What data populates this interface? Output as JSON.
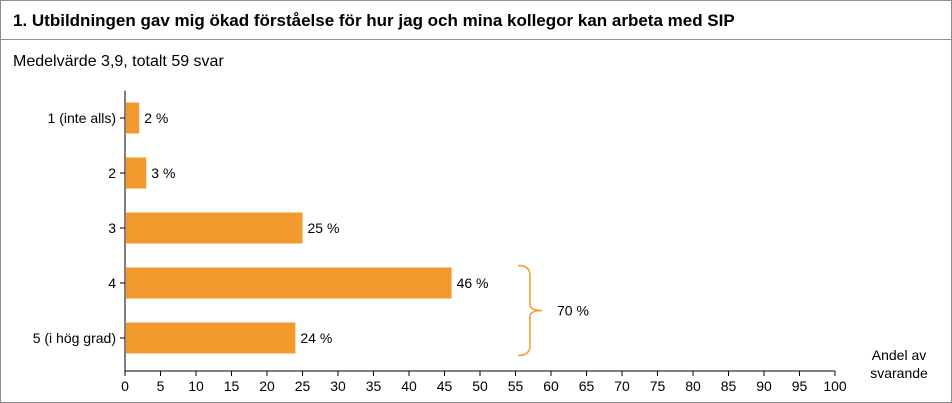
{
  "header": {
    "title": "1. Utbildningen gav mig ökad förståelse för hur jag och mina kollegor kan arbeta med SIP",
    "subtitle": "Medelvärde 3,9, totalt 59 svar"
  },
  "chart_data": {
    "type": "bar",
    "orientation": "horizontal",
    "categories": [
      "1 (inte alls)",
      "2",
      "3",
      "4",
      "5 (i hög grad)"
    ],
    "values": [
      2,
      3,
      25,
      46,
      24
    ],
    "value_labels": [
      "2 %",
      "3 %",
      "25 %",
      "46 %",
      "24 %"
    ],
    "xlim": [
      0,
      100
    ],
    "xticks": [
      0,
      5,
      10,
      15,
      20,
      25,
      30,
      35,
      40,
      45,
      50,
      55,
      60,
      65,
      70,
      75,
      80,
      85,
      90,
      95,
      100
    ],
    "xlabel": [
      "Andel av",
      "svarande"
    ],
    "grid": false,
    "bar_color": "#f29a2e",
    "annotations": [
      {
        "type": "bracket",
        "covers": [
          "4",
          "5 (i hög grad)"
        ],
        "label": "70 %"
      }
    ]
  }
}
